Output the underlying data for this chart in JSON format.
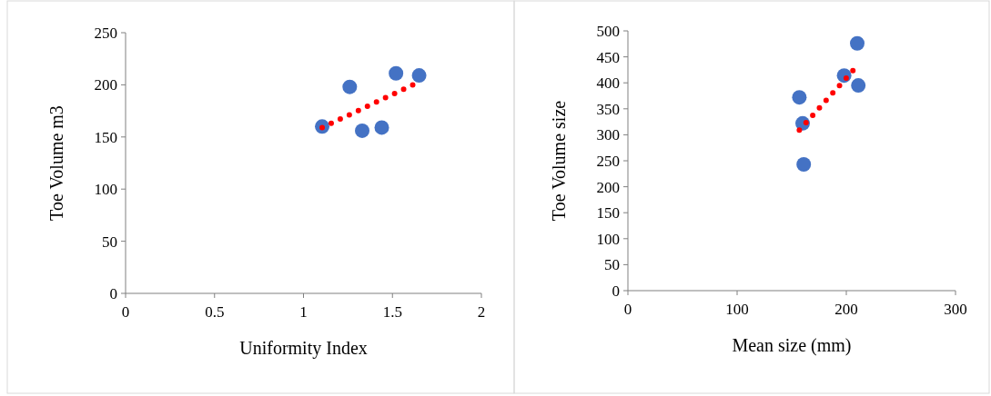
{
  "chart_data": [
    {
      "type": "scatter",
      "xlabel": "Uniformity Index",
      "ylabel": "Toe Volume m3",
      "xlim": [
        0,
        2
      ],
      "xticks": [
        0,
        0.5,
        1,
        1.5,
        2
      ],
      "ylim": [
        0,
        250
      ],
      "yticks": [
        0,
        50,
        100,
        150,
        200,
        250
      ],
      "grid": false,
      "series": [
        {
          "color": "#4472c4",
          "x": [
            1.105,
            1.26,
            1.33,
            1.44,
            1.52,
            1.65
          ],
          "values": [
            160,
            198,
            156,
            159,
            211,
            209
          ]
        },
        {
          "type": "line",
          "color": "#ff0000",
          "line_style": "dotted",
          "marker": "none",
          "x": [
            1.105,
            1.64
          ],
          "values": [
            159,
            202
          ]
        }
      ]
    },
    {
      "type": "scatter",
      "xlabel": "Mean size (mm)",
      "ylabel": "Toe Volume size",
      "xlim": [
        0,
        300
      ],
      "xticks": [
        0,
        100,
        200,
        300
      ],
      "ylim": [
        0,
        500
      ],
      "yticks": [
        0,
        50,
        100,
        150,
        200,
        250,
        300,
        350,
        400,
        450,
        500
      ],
      "grid": false,
      "series": [
        {
          "color": "#4472c4",
          "x": [
            157,
            160,
            161,
            198,
            210,
            211
          ],
          "values": [
            372,
            322,
            243,
            414,
            476,
            395
          ]
        },
        {
          "type": "line",
          "color": "#ff0000",
          "line_style": "dotted",
          "marker": "none",
          "x": [
            157,
            211
          ],
          "values": [
            309,
            435
          ]
        }
      ]
    }
  ]
}
